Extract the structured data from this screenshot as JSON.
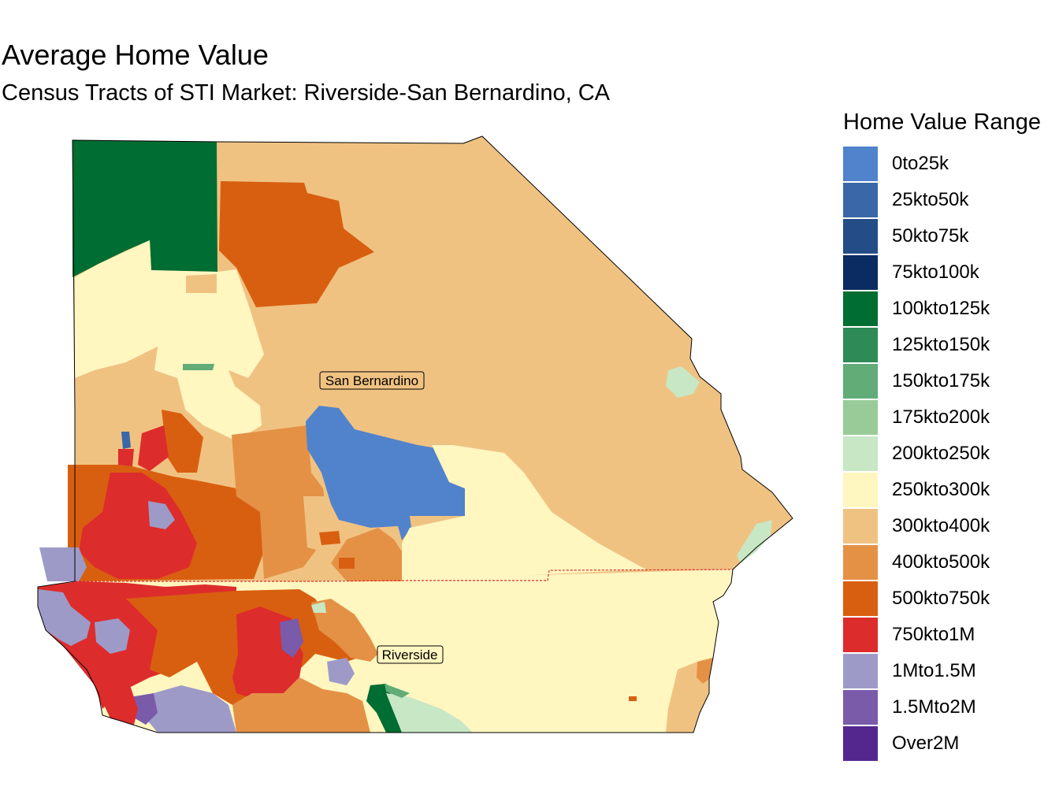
{
  "title": "Average Home Value",
  "subtitle": "Census Tracts of STI Market: Riverside-San Bernardino, CA",
  "legend": {
    "title": "Home Value Range",
    "items": [
      {
        "label": "0to25k",
        "color": "#5083CC"
      },
      {
        "label": "25kto50k",
        "color": "#3A67A8"
      },
      {
        "label": "50kto75k",
        "color": "#244D87"
      },
      {
        "label": "75kto100k",
        "color": "#0B2B63"
      },
      {
        "label": "100kto125k",
        "color": "#006D32"
      },
      {
        "label": "125kto150k",
        "color": "#2E8B57"
      },
      {
        "label": "150kto175k",
        "color": "#61AC77"
      },
      {
        "label": "175kto200k",
        "color": "#98CB98"
      },
      {
        "label": "200kto250k",
        "color": "#C8E7C5"
      },
      {
        "label": "250kto300k",
        "color": "#FFF6C0"
      },
      {
        "label": "300kto400k",
        "color": "#F0C282"
      },
      {
        "label": "400kto500k",
        "color": "#E49146"
      },
      {
        "label": "500kto750k",
        "color": "#D95F10"
      },
      {
        "label": "750kto1M",
        "color": "#DD2C2C"
      },
      {
        "label": "1Mto1.5M",
        "color": "#9E9AC8"
      },
      {
        "label": "1.5Mto2M",
        "color": "#7A5BAA"
      },
      {
        "label": "Over2M",
        "color": "#54278F"
      }
    ]
  },
  "map": {
    "county_labels": [
      "San Bernardino",
      "Riverside"
    ],
    "county_border_color": "#DD2C2C",
    "outline_color": "#000000"
  }
}
